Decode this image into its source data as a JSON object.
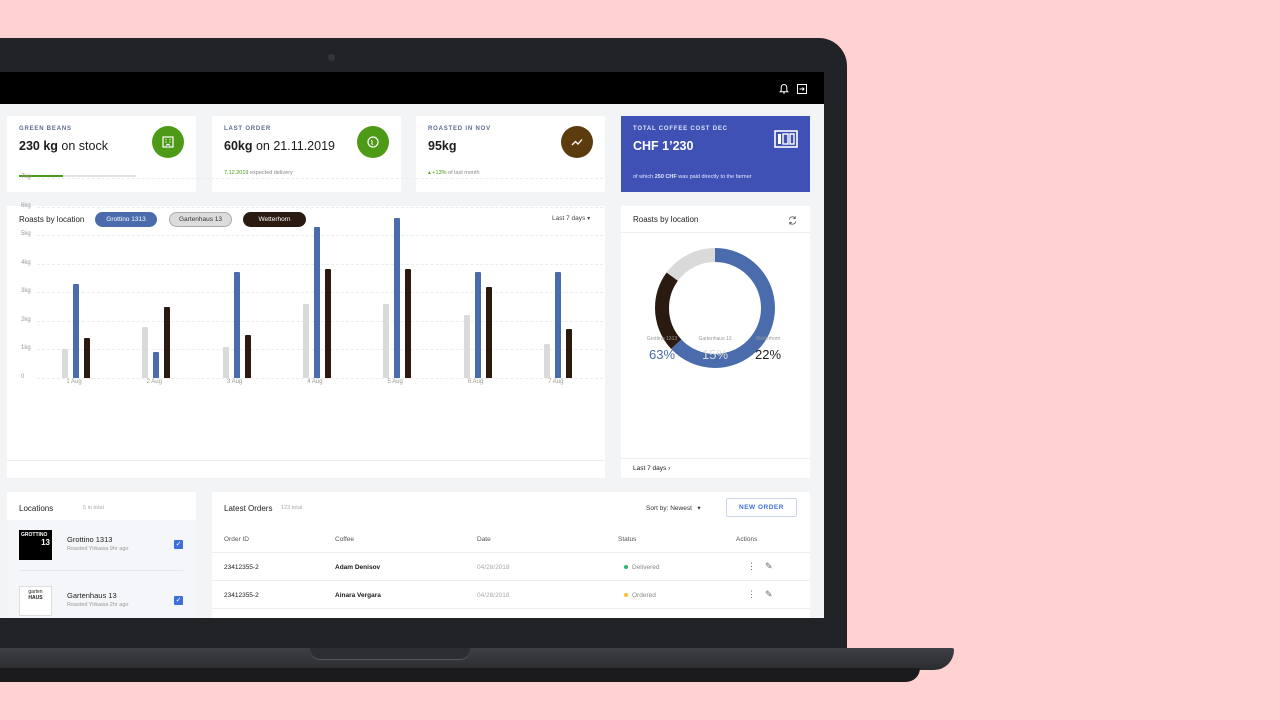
{
  "topbar": {
    "bell_icon": "bell-icon",
    "logout_icon": "logout-icon"
  },
  "kpis": [
    {
      "label": "GREEN BEANS",
      "value_bold": "230 kg",
      "value_rest": " on stock",
      "icon": "building-icon",
      "color": "#4c9a16",
      "stock_fill": 0.38
    },
    {
      "label": "LAST ORDER",
      "value_bold": "60kg",
      "value_rest": " on 21.11.2019",
      "icon": "coffee-bean-icon",
      "color": "#4c9a16",
      "sub_date": "7.12.2019",
      "sub_text": " expected delivery"
    },
    {
      "label": "ROASTED IN NOV",
      "value_bold": "95kg",
      "value_rest": "",
      "icon": "trend-icon",
      "color": "#5c3b0e",
      "sub_change": "+13%",
      "sub_text": " of last month"
    },
    {
      "label": "TOTAL COFFEE COST DEC",
      "value": "CHF 1’230",
      "icon": "money-icon",
      "color": "#3f51b5",
      "sub_pre": "of which ",
      "sub_bold": "250 CHF",
      "sub_post": " was paid directly to the farmer"
    }
  ],
  "bar_chart": {
    "title": "Roasts by location",
    "range_label": "Last 7 days"
  },
  "chart_data": [
    {
      "type": "bar",
      "categories": [
        "1 Aug",
        "2 Aug",
        "3 Aug",
        "4 Aug",
        "5 Aug",
        "6 Aug",
        "7 Aug"
      ],
      "yticks": [
        "0",
        "1kg",
        "2kg",
        "3kg",
        "4kg",
        "5kg",
        "6kg",
        "7kg"
      ],
      "ylim": [
        0,
        7
      ],
      "series": [
        {
          "name": "Grottino 1313",
          "color": "#4a6cad",
          "values": [
            3.3,
            0.9,
            3.7,
            5.3,
            5.6,
            3.7,
            3.7
          ]
        },
        {
          "name": "Gartenhaus 13",
          "color": "#dadada",
          "values": [
            1.0,
            1.8,
            1.1,
            2.6,
            2.6,
            2.2,
            1.2
          ]
        },
        {
          "name": "Wetterhorn",
          "color": "#2a1a10",
          "values": [
            1.4,
            2.5,
            1.5,
            3.8,
            3.8,
            3.2,
            1.7
          ]
        }
      ]
    },
    {
      "type": "pie",
      "categories": [
        "Grottino 1313",
        "Gartenhaus 13",
        "Wetterhorn"
      ],
      "values": [
        63,
        15,
        22
      ],
      "labels": [
        "63%",
        "15%",
        "22%"
      ],
      "colors": [
        "#4a6cad",
        "#dadada",
        "#2a1a10"
      ]
    }
  ],
  "donut": {
    "title": "Roasts by location",
    "refresh_icon": "refresh-icon",
    "footer": "Last 7 days"
  },
  "locations": {
    "title": "Locations",
    "count": "5 in total",
    "items": [
      {
        "name": "Grottino 1313",
        "sub": "Roasted Yirkawa 9hr ago",
        "logo_text": "GROTTINO",
        "logo_num": "13",
        "checked": true
      },
      {
        "name": "Gartenhaus 13",
        "sub": "Roasted Yirkawa 2hr ago",
        "logo_text": "garten",
        "logo_num": "HAUS",
        "checked": true
      }
    ]
  },
  "orders": {
    "title": "Latest Orders",
    "count": "123 total",
    "sort_label": "Sort by: Newest",
    "new_order": "NEW ORDER",
    "headers": [
      "Order ID",
      "Coffee",
      "Date",
      "Status",
      "Actions"
    ],
    "rows": [
      {
        "id": "23412355-2",
        "coffee": "Adam Denisov",
        "date": "04/28/2018",
        "status": "Delivered",
        "status_color": "#2bb673"
      },
      {
        "id": "23412355-2",
        "coffee": "Ainara Vergara",
        "date": "04/28/2018",
        "status": "Ordered",
        "status_color": "#f2c230"
      }
    ]
  }
}
